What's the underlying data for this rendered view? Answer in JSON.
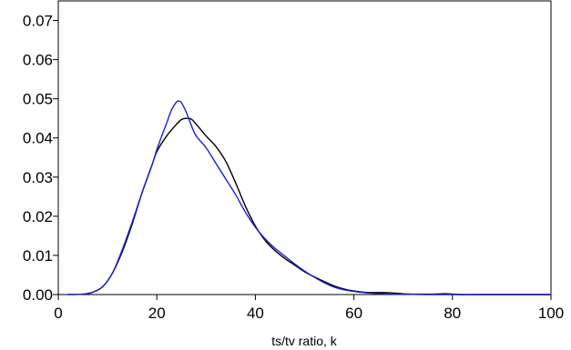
{
  "chart_data": {
    "type": "line",
    "title": "",
    "xlabel": "ts/tv ratio, k",
    "ylabel": "",
    "xlim": [
      0,
      100
    ],
    "ylim": [
      0,
      0.075
    ],
    "x_ticks": [
      {
        "value": 0,
        "label": "0"
      },
      {
        "value": 20,
        "label": "20"
      },
      {
        "value": 40,
        "label": "40"
      },
      {
        "value": 60,
        "label": "60"
      },
      {
        "value": 80,
        "label": "80"
      },
      {
        "value": 100,
        "label": "100"
      }
    ],
    "y_ticks": [
      {
        "value": 0,
        "label": "0.00"
      },
      {
        "value": 0.01,
        "label": "0.01"
      },
      {
        "value": 0.02,
        "label": "0.02"
      },
      {
        "value": 0.03,
        "label": "0.03"
      },
      {
        "value": 0.04,
        "label": "0.04"
      },
      {
        "value": 0.05,
        "label": "0.05"
      },
      {
        "value": 0.06,
        "label": "0.06"
      },
      {
        "value": 0.07,
        "label": "0.07"
      }
    ],
    "grid": false,
    "legend": "none",
    "series": [
      {
        "color": "#000000",
        "x": [
          2,
          5,
          7,
          9,
          11,
          13,
          15,
          17,
          19,
          20,
          22,
          24,
          25,
          26,
          27,
          28,
          30,
          32,
          34,
          36,
          38,
          40,
          42,
          44,
          46,
          48,
          50,
          52,
          54,
          56,
          58,
          60,
          62,
          64,
          66,
          68,
          70,
          72,
          74,
          76,
          78,
          79,
          80,
          82,
          85,
          90,
          95,
          100
        ],
        "y": [
          0.0,
          0.0001,
          0.0006,
          0.002,
          0.0055,
          0.011,
          0.018,
          0.026,
          0.033,
          0.0365,
          0.0405,
          0.0435,
          0.0447,
          0.045,
          0.0448,
          0.0435,
          0.0405,
          0.0378,
          0.034,
          0.0285,
          0.0225,
          0.0175,
          0.0138,
          0.0112,
          0.0092,
          0.0075,
          0.0058,
          0.0045,
          0.0033,
          0.0022,
          0.0014,
          0.0009,
          0.0006,
          0.0005,
          0.0005,
          0.0004,
          0.0002,
          0.0001,
          0.0001,
          0.0001,
          0.0002,
          0.0002,
          0.0001,
          0.0,
          0.0,
          0.0,
          0.0,
          0.0
        ]
      },
      {
        "color": "#1f1fd1",
        "x": [
          2,
          5,
          7,
          9,
          11,
          13,
          15,
          17,
          19,
          20,
          21,
          22,
          23,
          24,
          24.5,
          25,
          26,
          27,
          28,
          30,
          32,
          34,
          36,
          38,
          40,
          42,
          44,
          46,
          48,
          50,
          52,
          54,
          56,
          58,
          60,
          62,
          64,
          66,
          68,
          70,
          75,
          80,
          85,
          90,
          100
        ],
        "y": [
          0.0,
          0.0001,
          0.0006,
          0.002,
          0.0055,
          0.0115,
          0.0185,
          0.026,
          0.033,
          0.037,
          0.0405,
          0.0438,
          0.0472,
          0.0492,
          0.0494,
          0.049,
          0.0465,
          0.0432,
          0.0405,
          0.0375,
          0.0335,
          0.0295,
          0.0255,
          0.021,
          0.0172,
          0.0142,
          0.0118,
          0.0098,
          0.0078,
          0.006,
          0.0044,
          0.003,
          0.0019,
          0.0012,
          0.0008,
          0.0005,
          0.0003,
          0.0002,
          0.0001,
          0.0001,
          0.0,
          0.0,
          0.0,
          0.0,
          0.0
        ]
      }
    ]
  }
}
